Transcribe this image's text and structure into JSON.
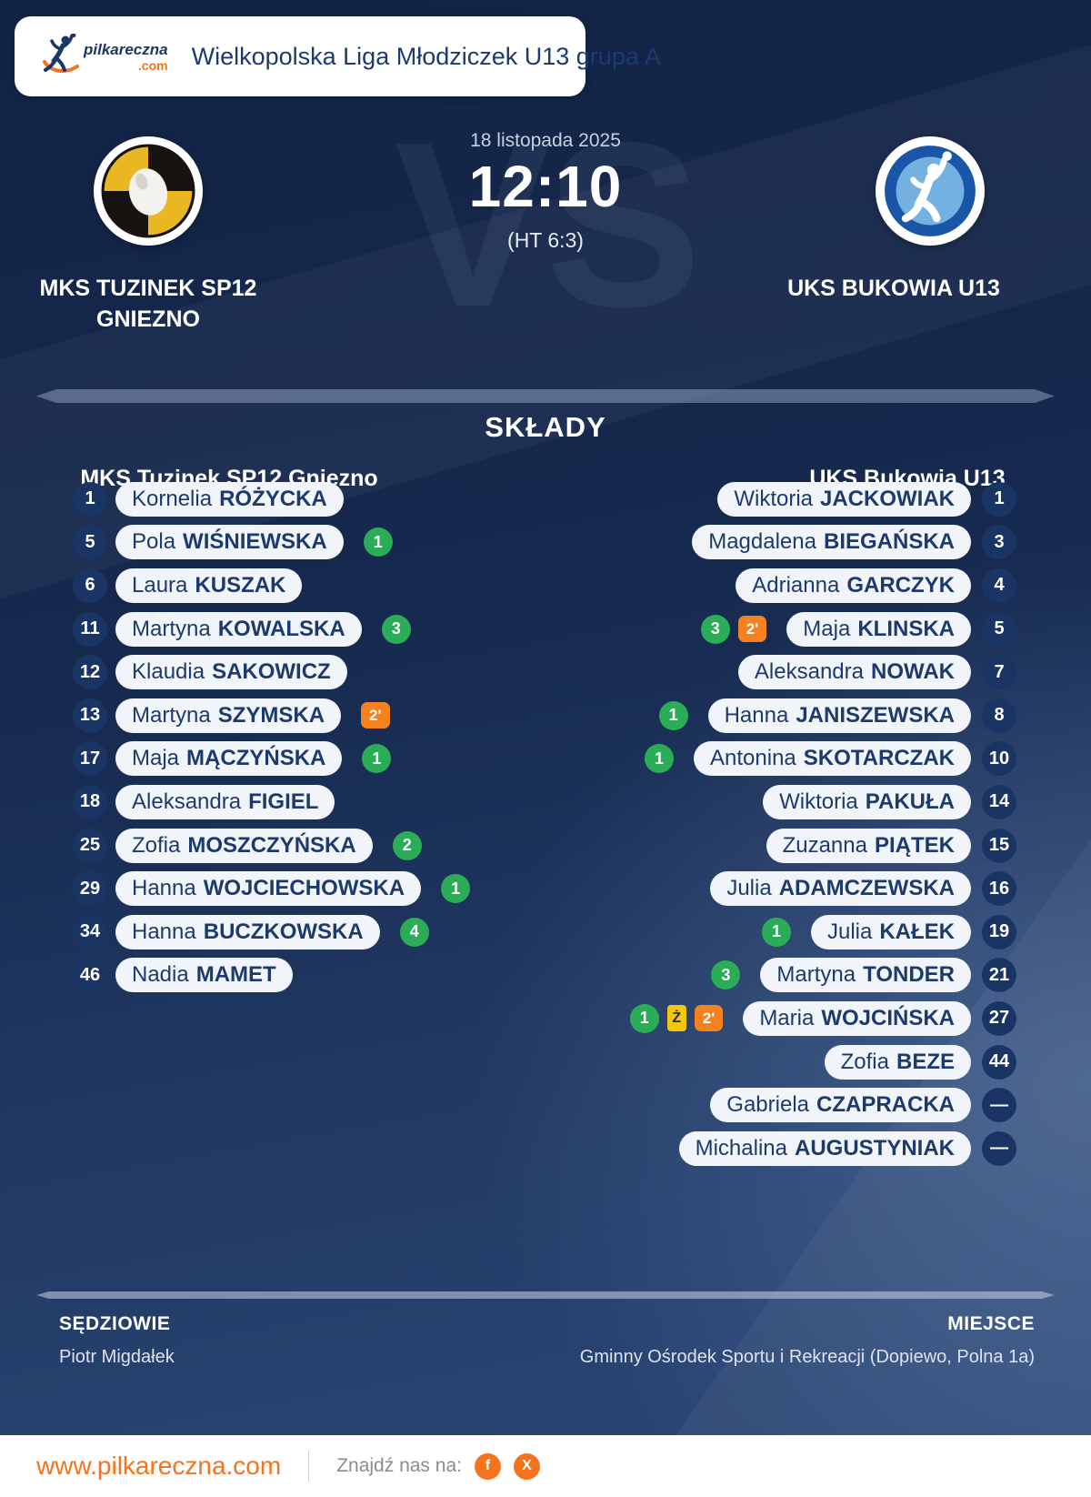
{
  "header": {
    "logo": {
      "name": "pilkareczna",
      "tld": ".com"
    },
    "league": "Wielkopolska Liga Młodziczek U13 grupa A"
  },
  "match": {
    "date": "18 listopada 2025",
    "score": "12:10",
    "halftime": "(HT 6:3)",
    "watermark": "VS",
    "home_team": {
      "line1": "MKS TUZINEK SP12",
      "line2": "GNIEZNO"
    },
    "away_team": {
      "line1": "UKS BUKOWIA U13"
    }
  },
  "lineups": {
    "title": "SKŁADY",
    "home": {
      "team": "MKS Tuzinek SP12 Gniezno",
      "players": [
        {
          "number": "1",
          "first": "Kornelia",
          "last": "RÓŻYCKA"
        },
        {
          "number": "5",
          "first": "Pola",
          "last": "WIŚNIEWSKA",
          "goals": "1"
        },
        {
          "number": "6",
          "first": "Laura",
          "last": "KUSZAK"
        },
        {
          "number": "11",
          "first": "Martyna",
          "last": "KOWALSKA",
          "goals": "3"
        },
        {
          "number": "12",
          "first": "Klaudia",
          "last": "SAKOWICZ"
        },
        {
          "number": "13",
          "first": "Martyna",
          "last": "SZYMSKA",
          "susp": "2'"
        },
        {
          "number": "17",
          "first": "Maja",
          "last": "MĄCZYŃSKA",
          "goals": "1"
        },
        {
          "number": "18",
          "first": "Aleksandra",
          "last": "FIGIEL"
        },
        {
          "number": "25",
          "first": "Zofia",
          "last": "MOSZCZYŃSKA",
          "goals": "2"
        },
        {
          "number": "29",
          "first": "Hanna",
          "last": "WOJCIECHOWSKA",
          "goals": "1"
        },
        {
          "number": "34",
          "first": "Hanna",
          "last": "BUCZKOWSKA",
          "goals": "4"
        },
        {
          "number": "46",
          "first": "Nadia",
          "last": "MAMET"
        }
      ]
    },
    "away": {
      "team": "UKS Bukowia U13",
      "players": [
        {
          "number": "1",
          "first": "Wiktoria",
          "last": "JACKOWIAK"
        },
        {
          "number": "3",
          "first": "Magdalena",
          "last": "BIEGAŃSKA"
        },
        {
          "number": "4",
          "first": "Adrianna",
          "last": "GARCZYK"
        },
        {
          "number": "5",
          "first": "Maja",
          "last": "KLINSKA",
          "goals": "3",
          "susp": "2'"
        },
        {
          "number": "7",
          "first": "Aleksandra",
          "last": "NOWAK"
        },
        {
          "number": "8",
          "first": "Hanna",
          "last": "JANISZEWSKA",
          "goals": "1"
        },
        {
          "number": "10",
          "first": "Antonina",
          "last": "SKOTARCZAK",
          "goals": "1"
        },
        {
          "number": "14",
          "first": "Wiktoria",
          "last": "PAKUŁA"
        },
        {
          "number": "15",
          "first": "Zuzanna",
          "last": "PIĄTEK"
        },
        {
          "number": "16",
          "first": "Julia",
          "last": "ADAMCZEWSKA"
        },
        {
          "number": "19",
          "first": "Julia",
          "last": "KAŁEK",
          "goals": "1"
        },
        {
          "number": "21",
          "first": "Martyna",
          "last": "TONDER",
          "goals": "3"
        },
        {
          "number": "27",
          "first": "Maria",
          "last": "WOJCIŃSKA",
          "goals": "1",
          "yellow": "Ż",
          "susp": "2'"
        },
        {
          "number": "44",
          "first": "Zofia",
          "last": "BEZE"
        },
        {
          "number": "—",
          "first": "Gabriela",
          "last": "CZAPRACKA"
        },
        {
          "number": "—",
          "first": "Michalina",
          "last": "AUGUSTYNIAK"
        }
      ]
    }
  },
  "info": {
    "referees_label": "SĘDZIOWIE",
    "referees": "Piotr Migdałek",
    "venue_label": "MIEJSCE",
    "venue": "Gminny Ośrodek Sportu i Rekreacji (Dopiewo, Polna 1a)"
  },
  "footer": {
    "url": "www.pilkareczna.com",
    "find_us": "Znajdź nas na:",
    "social": [
      {
        "icon": "facebook-icon",
        "glyph": "f"
      },
      {
        "icon": "x-icon",
        "glyph": "X"
      }
    ]
  },
  "colors": {
    "background_navy": "#16294e",
    "accent_orange": "#f4731c",
    "goal_green": "#2bad57",
    "yellow_card": "#f6c50f",
    "suspension_orange": "#f5821f",
    "navy_text": "#1d3a6c"
  }
}
